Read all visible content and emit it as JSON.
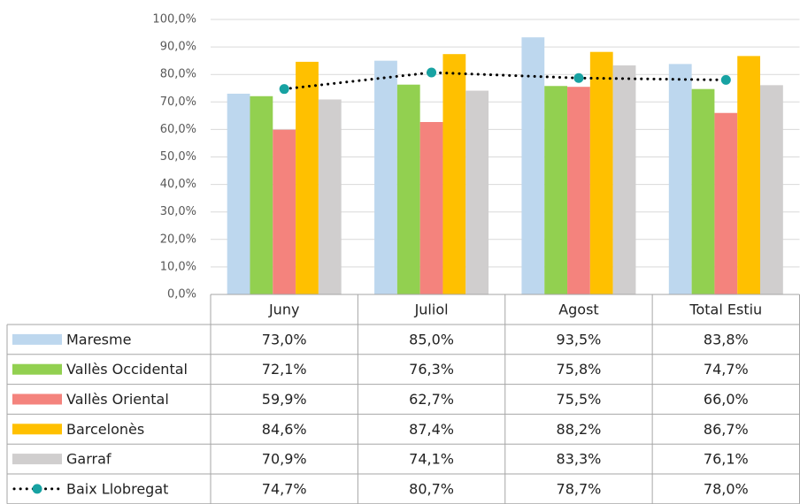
{
  "chart_data": {
    "type": "bar",
    "categories": [
      "Juny",
      "Juliol",
      "Agost",
      "Total Estiu"
    ],
    "ylim": [
      0,
      100
    ],
    "yticks": [
      {
        "value": 0,
        "label": "0,0%"
      },
      {
        "value": 10,
        "label": "10,0%"
      },
      {
        "value": 20,
        "label": "20,0%"
      },
      {
        "value": 30,
        "label": "30,0%"
      },
      {
        "value": 40,
        "label": "40,0%"
      },
      {
        "value": 50,
        "label": "50,0%"
      },
      {
        "value": 60,
        "label": "60,0%"
      },
      {
        "value": 70,
        "label": "70,0%"
      },
      {
        "value": 80,
        "label": "80,0%"
      },
      {
        "value": 90,
        "label": "90,0%"
      },
      {
        "value": 100,
        "label": "100,0%"
      }
    ],
    "grid": true,
    "series": [
      {
        "name": "Maresme",
        "color": "#bdd7ee",
        "values": [
          73.0,
          85.0,
          93.5,
          83.8
        ],
        "value_labels": [
          "73,0%",
          "85,0%",
          "93,5%",
          "83,8%"
        ]
      },
      {
        "name": "Vallès Occidental",
        "color": "#92d050",
        "values": [
          72.1,
          76.3,
          75.8,
          74.7
        ],
        "value_labels": [
          "72,1%",
          "76,3%",
          "75,8%",
          "74,7%"
        ]
      },
      {
        "name": "Vallès Oriental",
        "color": "#f4837d",
        "values": [
          59.9,
          62.7,
          75.5,
          66.0
        ],
        "value_labels": [
          "59,9%",
          "62,7%",
          "75,5%",
          "66,0%"
        ]
      },
      {
        "name": "Barcelonès",
        "color": "#ffc000",
        "values": [
          84.6,
          87.4,
          88.2,
          86.7
        ],
        "value_labels": [
          "84,6%",
          "87,4%",
          "88,2%",
          "86,7%"
        ]
      },
      {
        "name": "Garraf",
        "color": "#d0cece",
        "values": [
          70.9,
          74.1,
          83.3,
          76.1
        ],
        "value_labels": [
          "70,9%",
          "74,1%",
          "83,3%",
          "76,1%"
        ]
      },
      {
        "name": "Baix Llobregat",
        "type": "line",
        "color": "#000000",
        "marker_color": "#17a2a2",
        "values": [
          74.7,
          80.7,
          78.7,
          78.0
        ],
        "value_labels": [
          "74,7%",
          "80,7%",
          "78,7%",
          "78,0%"
        ]
      }
    ]
  }
}
